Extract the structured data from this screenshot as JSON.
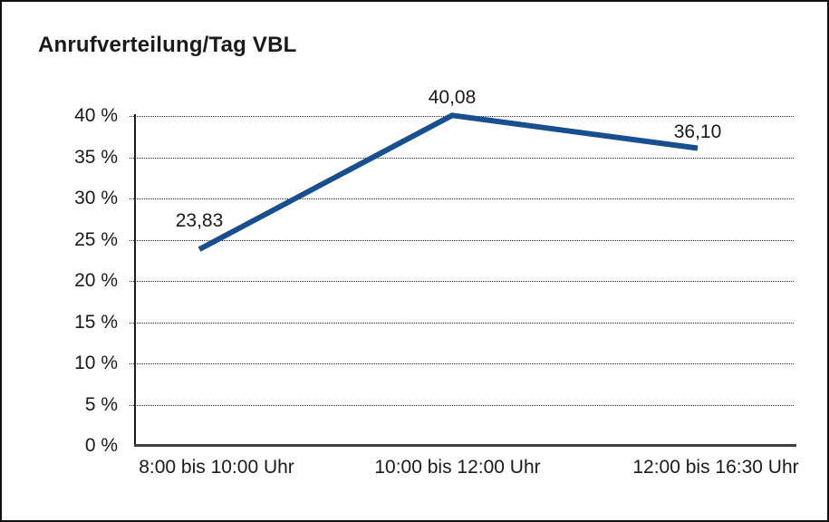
{
  "chart_data": {
    "type": "line",
    "title": "Anrufverteilung/Tag VBL",
    "categories": [
      "8:00 bis 10:00 Uhr",
      "10:00 bis 12:00 Uhr",
      "12:00 bis 16:30 Uhr"
    ],
    "series": [
      {
        "values": [
          23.83,
          40.08,
          36.1
        ],
        "point_labels": [
          "23,83",
          "40,08",
          "36,10"
        ]
      }
    ],
    "ytick_values": [
      0,
      5,
      10,
      15,
      20,
      25,
      30,
      35,
      40
    ],
    "ytick_labels": [
      "0 %",
      "5 %",
      "10 %",
      "15 %",
      "20 %",
      "25 %",
      "30 %",
      "35 %",
      "40 %"
    ],
    "ylim": [
      0,
      40
    ],
    "grid": "horizontal-dotted",
    "legend": false,
    "colors": {
      "line": "#174F8F",
      "grid": "#222222",
      "axis": "#1A1A1A",
      "baseline": "#404040",
      "text": "#1A1A1A",
      "background": "#FFFFFF",
      "border": "#111111"
    }
  }
}
